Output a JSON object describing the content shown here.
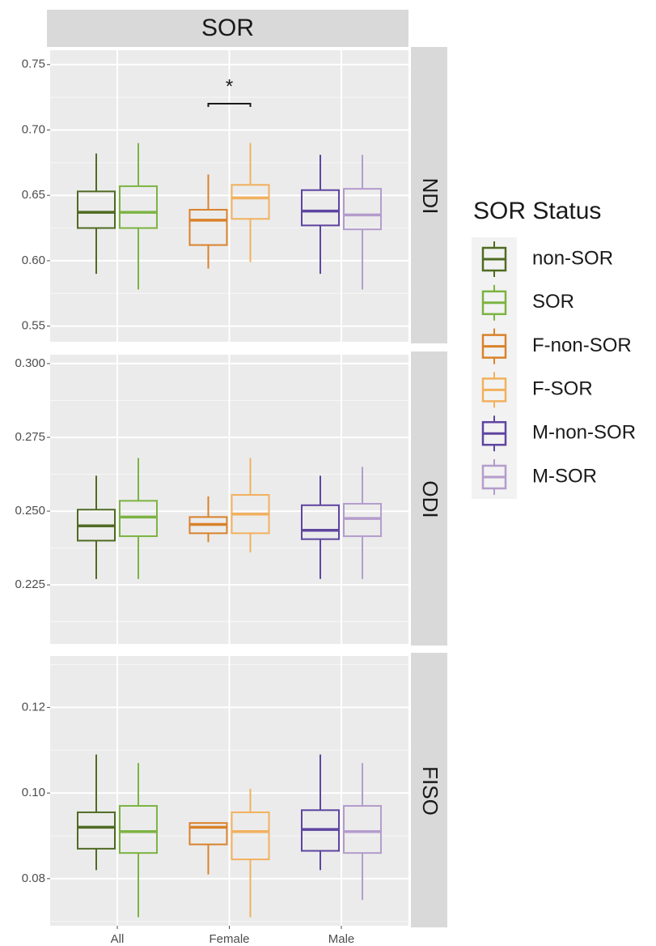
{
  "chart_data": [
    {
      "type": "box",
      "title": "SOR",
      "facet": "NDI",
      "legend_title": "SOR Status",
      "ylim": [
        0.538,
        0.761
      ],
      "yticks": [
        0.55,
        {
          "value": 0.6,
          "label": "0.60"
        },
        0.65,
        {
          "value": 0.7,
          "label": "0.70"
        },
        0.75
      ],
      "annotation": "*",
      "series": [
        {
          "name": "non-SOR",
          "color": "#4f6b22",
          "whisker_low": [
            0.59,
            null,
            null
          ],
          "q1": [
            0.625,
            null,
            null
          ],
          "median": [
            0.637,
            null,
            null
          ],
          "q3": [
            0.653,
            null,
            null
          ],
          "whisker_high": [
            0.682,
            null,
            null
          ]
        },
        {
          "name": "SOR",
          "color": "#7cb342",
          "whisker_low": [
            0.578,
            null,
            null
          ],
          "q1": [
            0.625,
            null,
            null
          ],
          "median": [
            0.637,
            null,
            null
          ],
          "q3": [
            0.657,
            null,
            null
          ],
          "whisker_high": [
            0.69,
            null,
            null
          ]
        },
        {
          "name": "F-non-SOR",
          "color": "#d9822b",
          "whisker_low": [
            null,
            0.594,
            null
          ],
          "q1": [
            null,
            0.612,
            null
          ],
          "median": [
            null,
            0.631,
            null
          ],
          "q3": [
            null,
            0.639,
            null
          ],
          "whisker_high": [
            null,
            0.666,
            null
          ]
        },
        {
          "name": "F-SOR",
          "color": "#f2b05e",
          "whisker_low": [
            null,
            0.599,
            null
          ],
          "q1": [
            null,
            0.632,
            null
          ],
          "median": [
            null,
            0.648,
            null
          ],
          "q3": [
            null,
            0.658,
            null
          ],
          "whisker_high": [
            null,
            0.69,
            null
          ]
        },
        {
          "name": "M-non-SOR",
          "color": "#5e45a0",
          "whisker_low": [
            null,
            null,
            0.59
          ],
          "q1": [
            null,
            null,
            0.627
          ],
          "median": [
            null,
            null,
            0.638
          ],
          "q3": [
            null,
            null,
            0.654
          ],
          "whisker_high": [
            null,
            null,
            0.681
          ]
        },
        {
          "name": "M-SOR",
          "color": "#b49ccc",
          "whisker_low": [
            null,
            null,
            0.578
          ],
          "q1": [
            null,
            null,
            0.624
          ],
          "median": [
            null,
            null,
            0.635
          ],
          "q3": [
            null,
            null,
            0.655
          ],
          "whisker_high": [
            null,
            null,
            0.681
          ]
        }
      ]
    },
    {
      "type": "box",
      "facet": "ODI",
      "ylim": [
        0.205,
        0.303
      ],
      "yticks": [
        0.225,
        {
          "value": 0.25,
          "label": "0.250"
        },
        0.275,
        {
          "value": 0.3,
          "label": "0.300"
        }
      ],
      "series": [
        {
          "name": "non-SOR",
          "color": "#4f6b22",
          "whisker_low": [
            0.227,
            null,
            null
          ],
          "q1": [
            0.24,
            null,
            null
          ],
          "median": [
            0.245,
            null,
            null
          ],
          "q3": [
            0.2505,
            null,
            null
          ],
          "whisker_high": [
            0.262,
            null,
            null
          ]
        },
        {
          "name": "SOR",
          "color": "#7cb342",
          "whisker_low": [
            0.227,
            null,
            null
          ],
          "q1": [
            0.2415,
            null,
            null
          ],
          "median": [
            0.248,
            null,
            null
          ],
          "q3": [
            0.2535,
            null,
            null
          ],
          "whisker_high": [
            0.268,
            null,
            null
          ]
        },
        {
          "name": "F-non-SOR",
          "color": "#d9822b",
          "whisker_low": [
            null,
            0.2395,
            null
          ],
          "q1": [
            null,
            0.2425,
            null
          ],
          "median": [
            null,
            0.2455,
            null
          ],
          "q3": [
            null,
            0.248,
            null
          ],
          "whisker_high": [
            null,
            0.255,
            null
          ]
        },
        {
          "name": "F-SOR",
          "color": "#f2b05e",
          "whisker_low": [
            null,
            0.236,
            null
          ],
          "q1": [
            null,
            0.2425,
            null
          ],
          "median": [
            null,
            0.249,
            null
          ],
          "q3": [
            null,
            0.2555,
            null
          ],
          "whisker_high": [
            null,
            0.268,
            null
          ]
        },
        {
          "name": "M-non-SOR",
          "color": "#5e45a0",
          "whisker_low": [
            null,
            null,
            0.227
          ],
          "q1": [
            null,
            null,
            0.2405
          ],
          "median": [
            null,
            null,
            0.2435
          ],
          "q3": [
            null,
            null,
            0.252
          ],
          "whisker_high": [
            null,
            null,
            0.262
          ]
        },
        {
          "name": "M-SOR",
          "color": "#b49ccc",
          "whisker_low": [
            null,
            null,
            0.227
          ],
          "q1": [
            null,
            null,
            0.2415
          ],
          "median": [
            null,
            null,
            0.2475
          ],
          "q3": [
            null,
            null,
            0.2525
          ],
          "whisker_high": [
            null,
            null,
            0.265
          ]
        }
      ]
    },
    {
      "type": "box",
      "facet": "FISO",
      "categories": [
        "All",
        "Female",
        "Male"
      ],
      "ylim": [
        0.069,
        0.132
      ],
      "yticks": [
        0.08,
        {
          "value": 0.1,
          "label": "0.10"
        },
        0.12
      ],
      "series": [
        {
          "name": "non-SOR",
          "color": "#4f6b22",
          "whisker_low": [
            0.082,
            null,
            null
          ],
          "q1": [
            0.087,
            null,
            null
          ],
          "median": [
            0.092,
            null,
            null
          ],
          "q3": [
            0.0955,
            null,
            null
          ],
          "whisker_high": [
            0.109,
            null,
            null
          ]
        },
        {
          "name": "SOR",
          "color": "#7cb342",
          "whisker_low": [
            0.071,
            null,
            null
          ],
          "q1": [
            0.086,
            null,
            null
          ],
          "median": [
            0.091,
            null,
            null
          ],
          "q3": [
            0.097,
            null,
            null
          ],
          "whisker_high": [
            0.107,
            null,
            null
          ]
        },
        {
          "name": "F-non-SOR",
          "color": "#d9822b",
          "whisker_low": [
            null,
            0.081,
            null
          ],
          "q1": [
            null,
            0.088,
            null
          ],
          "median": [
            null,
            0.092,
            null
          ],
          "q3": [
            null,
            0.093,
            null
          ],
          "whisker_high": [
            null,
            0.093,
            null
          ]
        },
        {
          "name": "F-SOR",
          "color": "#f2b05e",
          "whisker_low": [
            null,
            0.071,
            null
          ],
          "q1": [
            null,
            0.0845,
            null
          ],
          "median": [
            null,
            0.091,
            null
          ],
          "q3": [
            null,
            0.0955,
            null
          ],
          "whisker_high": [
            null,
            0.101,
            null
          ]
        },
        {
          "name": "M-non-SOR",
          "color": "#5e45a0",
          "whisker_low": [
            null,
            null,
            0.082
          ],
          "q1": [
            null,
            null,
            0.0865
          ],
          "median": [
            null,
            null,
            0.0915
          ],
          "q3": [
            null,
            null,
            0.096
          ],
          "whisker_high": [
            null,
            null,
            0.109
          ]
        },
        {
          "name": "M-SOR",
          "color": "#b49ccc",
          "whisker_low": [
            null,
            null,
            0.075
          ],
          "q1": [
            null,
            null,
            0.086
          ],
          "median": [
            null,
            null,
            0.091
          ],
          "q3": [
            null,
            null,
            0.097
          ],
          "whisker_high": [
            null,
            null,
            0.107
          ]
        }
      ]
    }
  ]
}
